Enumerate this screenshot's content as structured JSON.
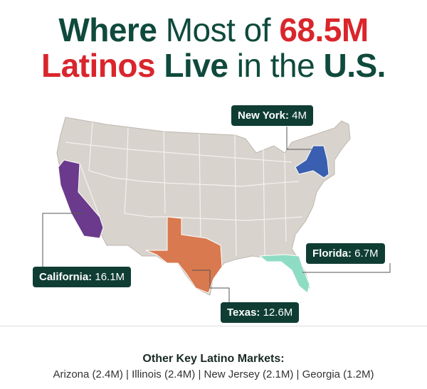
{
  "header": {
    "title": [
      "Where",
      "Most of",
      "68.5M",
      "Latinos",
      "Live",
      "in the",
      "U.S."
    ]
  },
  "callouts": [
    {
      "label": "New York:",
      "value": "4M"
    },
    {
      "label": "California:",
      "value": "16.1M"
    },
    {
      "label": "Florida:",
      "value": "6.7M"
    },
    {
      "label": "Texas:",
      "value": "12.6M"
    }
  ],
  "footer": {
    "heading": "Other Key Latino Markets:",
    "markets": [
      "Arizona (2.4M)",
      "Illinois (2.4M)",
      "New Jersey (2.1M)",
      "Georgia (1.2M)"
    ]
  }
}
